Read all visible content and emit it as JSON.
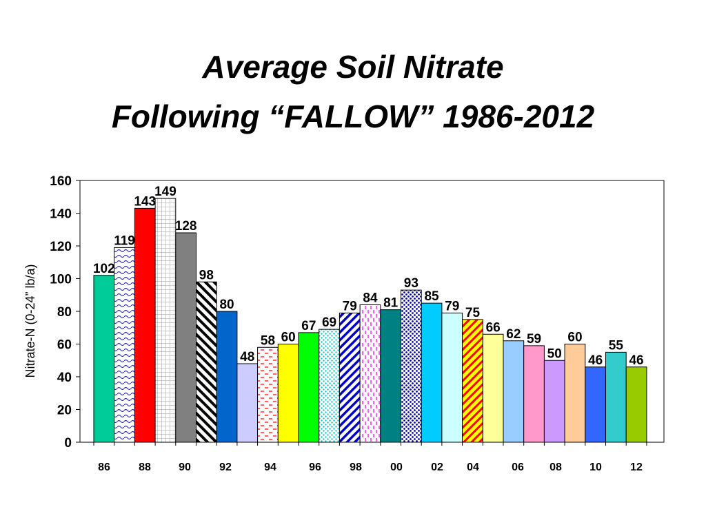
{
  "title_lines": [
    "Average Soil Nitrate",
    "Following “FALLOW” 1986-2012"
  ],
  "chart_data": {
    "type": "bar",
    "title": "Average Soil Nitrate Following “FALLOW” 1986-2012",
    "xlabel": "",
    "ylabel": "Nitrate-N (0-24” lb/a)",
    "ylim": [
      0,
      160
    ],
    "yticks": [
      0,
      20,
      40,
      60,
      80,
      100,
      120,
      140,
      160
    ],
    "x_tick_labels": [
      "86",
      "88",
      "90",
      "92",
      "94",
      "96",
      "98",
      "00",
      "02",
      "04",
      "06",
      "08",
      "10",
      "12"
    ],
    "grid": false,
    "legend": "none",
    "values": [
      102,
      119,
      143,
      149,
      128,
      98,
      80,
      48,
      58,
      60,
      67,
      69,
      79,
      84,
      81,
      93,
      85,
      79,
      75,
      66,
      62,
      59,
      50,
      60,
      46,
      55,
      46
    ],
    "data_labels": [
      "102",
      "119",
      "143",
      "149",
      "128",
      "98",
      "80",
      "48",
      "58",
      "60",
      "67",
      "69",
      "79",
      "84",
      "81",
      "93",
      "85",
      "79",
      "75",
      "66",
      "62",
      "59",
      "50",
      "60",
      "46",
      "55",
      "46"
    ],
    "bar_colors": [
      "#00cc99",
      "#ffffff",
      "#ff0000",
      "#ffffff",
      "#808080",
      "#ffffff",
      "#0066cc",
      "#ccccff",
      "#ffffff",
      "#ffff00",
      "#00ff00",
      "#ffffff",
      "#ffffff",
      "#ffffff",
      "#008080",
      "#ffffff",
      "#00ccff",
      "#ccffff",
      "#ffff00",
      "#ffff99",
      "#99ccff",
      "#ff99cc",
      "#cc99ff",
      "#ffcc99",
      "#3366ff",
      "#33cccc",
      "#99cc00"
    ],
    "bar_patterns": [
      "none",
      "wave-blue",
      "none",
      "grid-gray",
      "none",
      "diag-black",
      "none",
      "none",
      "dash-red",
      "none",
      "none",
      "dots-cyan",
      "diag-blue",
      "vdash-magenta",
      "none",
      "dots-blue",
      "none",
      "none",
      "diag-red-on-yellow",
      "none",
      "none",
      "none",
      "none",
      "none",
      "none",
      "none",
      "none"
    ]
  }
}
